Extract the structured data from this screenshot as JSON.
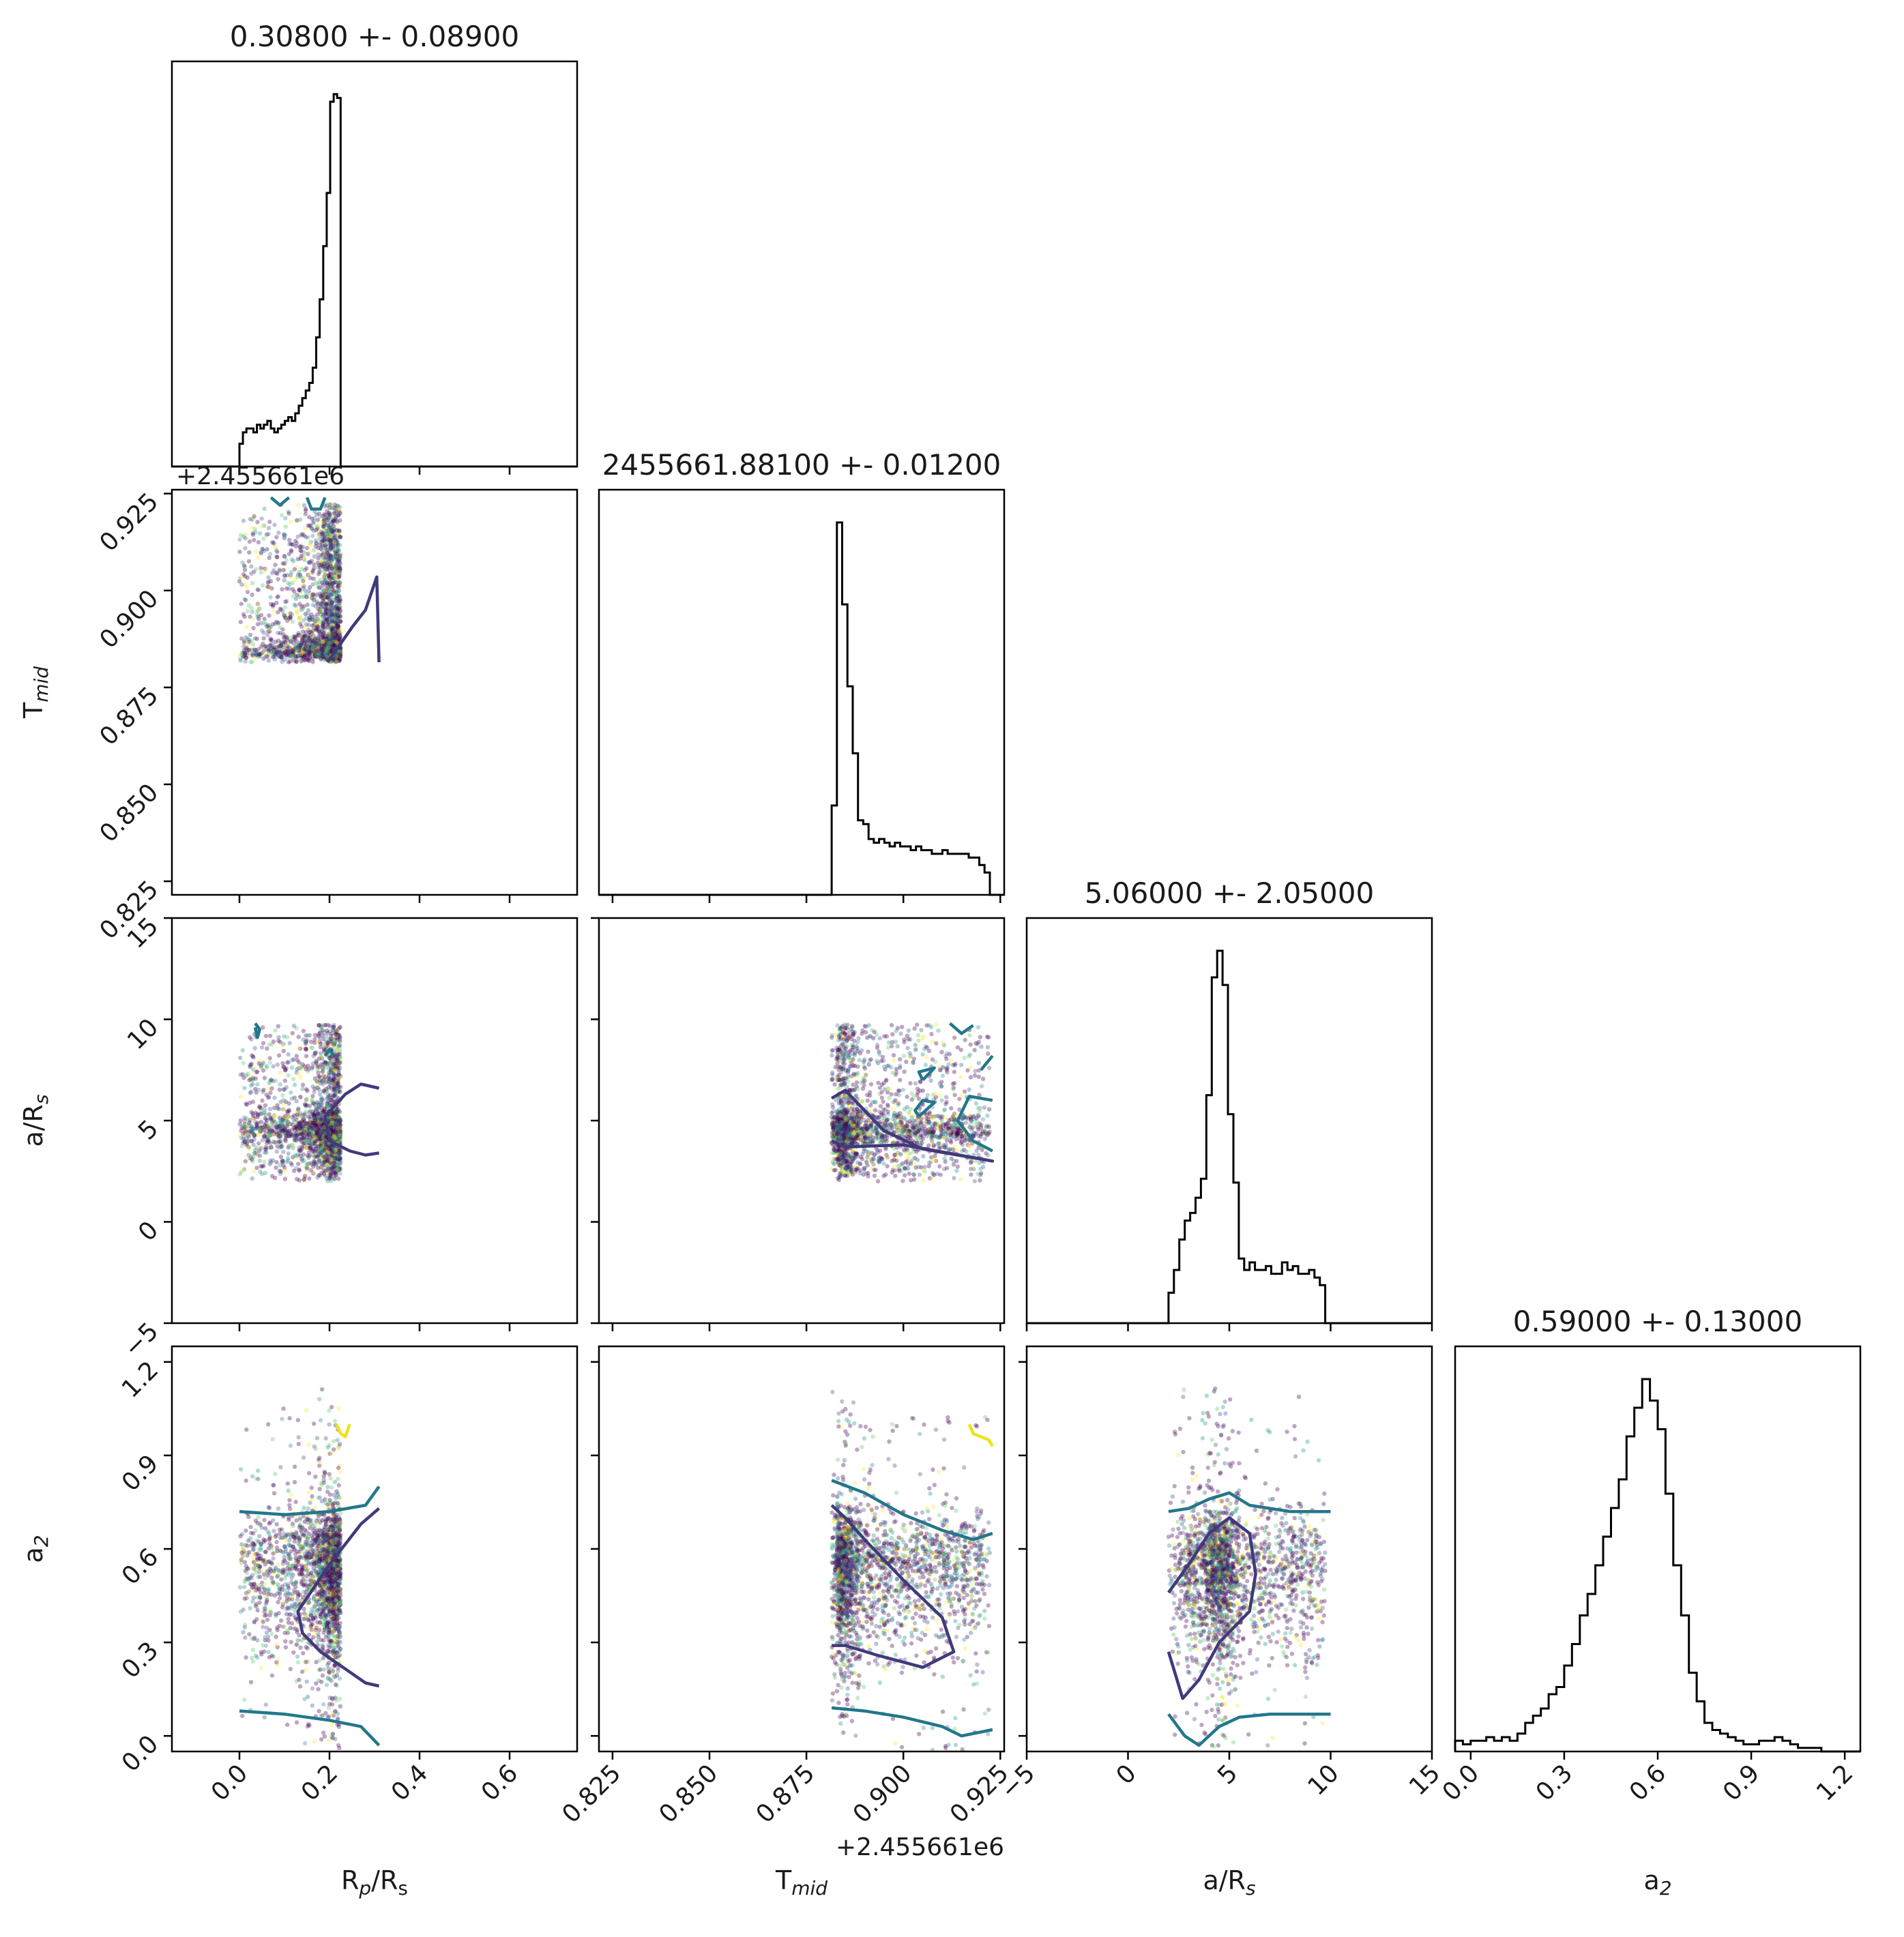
{
  "chart_data": {
    "type": "corner",
    "parameters": [
      {
        "key": "rp",
        "label": "R",
        "sub": "p",
        "label_tail": "/R",
        "tail_sub": "s",
        "title": "0.30800 +- 0.08900",
        "range": [
          -0.15,
          0.75
        ],
        "ticks": [
          0.0,
          0.2,
          0.4,
          0.6
        ],
        "tick_labels": [
          "0.0",
          "0.2",
          "0.4",
          "0.6"
        ],
        "offset": ""
      },
      {
        "key": "tmid",
        "label": "T",
        "sub": "mid",
        "label_tail": "",
        "tail_sub": "",
        "title": "2455661.88100 +- 0.01200",
        "range": [
          0.8215,
          0.926
        ],
        "ticks": [
          0.825,
          0.85,
          0.875,
          0.9,
          0.925
        ],
        "tick_labels": [
          "0.825",
          "0.850",
          "0.875",
          "0.900",
          "0.925"
        ],
        "offset": "+2.455661e6"
      },
      {
        "key": "ars",
        "label": "a/R",
        "sub": "s",
        "label_tail": "",
        "tail_sub": "",
        "title": "5.06000 +- 2.05000",
        "range": [
          -5.0,
          15.0
        ],
        "ticks": [
          -5,
          0,
          5,
          10,
          15
        ],
        "tick_labels": [
          "−5",
          "0",
          "5",
          "10",
          "15"
        ],
        "offset": ""
      },
      {
        "key": "a2",
        "label": "a",
        "sub": "2",
        "label_tail": "",
        "tail_sub": "",
        "title": "0.59000 +- 0.13000",
        "range": [
          -0.05,
          1.25
        ],
        "ticks": [
          0.0,
          0.3,
          0.6,
          0.9,
          1.2
        ],
        "tick_labels": [
          "0.0",
          "0.3",
          "0.6",
          "0.9",
          "1.2"
        ],
        "offset": ""
      }
    ],
    "histograms": {
      "rp": {
        "bin_start": 0.0,
        "bin_width": 0.00775,
        "counts": [
          6,
          9,
          10,
          10,
          9,
          11,
          10,
          11,
          12,
          10,
          9,
          10,
          11,
          12,
          13,
          12,
          14,
          16,
          18,
          20,
          22,
          26,
          34,
          44,
          58,
          72,
          96,
          98,
          97,
          0
        ]
      },
      "tmid": {
        "bin_start": 0.8815,
        "bin_width": 0.00136,
        "counts": [
          24,
          100,
          78,
          56,
          38,
          20,
          19,
          15,
          14,
          15,
          14,
          13,
          14,
          13,
          13,
          12,
          13,
          12,
          12,
          11,
          11,
          12,
          11,
          11,
          11,
          11,
          10,
          10,
          8,
          6
        ]
      },
      "ars": {
        "bin_start": 2.0,
        "bin_width": 0.2667,
        "counts": [
          8,
          14,
          22,
          27,
          29,
          33,
          38,
          60,
          91,
          98,
          89,
          55,
          37,
          17,
          14,
          16,
          14,
          14,
          15,
          13,
          13,
          16,
          14,
          15,
          13,
          13,
          14,
          12,
          10,
          0
        ]
      },
      "a2": {
        "bin_start": -0.05,
        "bin_width": 0.025,
        "counts": [
          3,
          2,
          3,
          3,
          4,
          3,
          4,
          3,
          5,
          8,
          10,
          12,
          16,
          18,
          24,
          30,
          38,
          44,
          52,
          60,
          68,
          76,
          88,
          96,
          104,
          98,
          90,
          72,
          52,
          38,
          22,
          14,
          8,
          6,
          5,
          4,
          3,
          2,
          2,
          3,
          3,
          4,
          3,
          2,
          1,
          1,
          1,
          0,
          0
        ]
      }
    },
    "contours": {
      "rp_tmid": [
        {
          "level": "inner",
          "points": [
            [
              0.195,
              0.8815
            ],
            [
              0.22,
              0.8855
            ],
            [
              0.25,
              0.8905
            ],
            [
              0.28,
              0.895
            ],
            [
              0.305,
              0.9035
            ],
            [
              0.31,
              0.8815
            ]
          ]
        },
        {
          "level": "outer",
          "points": [
            [
              0.07,
              0.924
            ],
            [
              0.09,
              0.922
            ],
            [
              0.11,
              0.924
            ]
          ]
        },
        {
          "level": "outer",
          "points": [
            [
              0.15,
              0.924
            ],
            [
              0.16,
              0.921
            ],
            [
              0.18,
              0.921
            ],
            [
              0.19,
              0.924
            ]
          ]
        }
      ],
      "rp_ars": [
        {
          "level": "inner",
          "points": [
            [
              0.31,
              6.6
            ],
            [
              0.27,
              6.8
            ],
            [
              0.235,
              6.3
            ],
            [
              0.19,
              5.2
            ],
            [
              0.2,
              4.0
            ],
            [
              0.245,
              3.5
            ],
            [
              0.28,
              3.3
            ],
            [
              0.31,
              3.4
            ]
          ]
        },
        {
          "level": "outer",
          "points": [
            [
              0.035,
              9.6
            ],
            [
              0.04,
              9.1
            ],
            [
              0.045,
              9.5
            ],
            [
              0.035,
              9.8
            ]
          ]
        },
        {
          "level": "outer",
          "points": [
            [
              0.19,
              8.2
            ],
            [
              0.2,
              8.5
            ],
            [
              0.21,
              8.2
            ]
          ]
        }
      ],
      "tmid_ars": [
        {
          "level": "inner",
          "points": [
            [
              0.8815,
              6.1
            ],
            [
              0.885,
              6.5
            ],
            [
              0.89,
              5.5
            ],
            [
              0.895,
              4.5
            ],
            [
              0.905,
              3.6
            ],
            [
              0.92,
              3.1
            ],
            [
              0.923,
              3.0
            ],
            [
              0.9,
              3.8
            ],
            [
              0.885,
              3.7
            ],
            [
              0.8815,
              4.0
            ]
          ]
        },
        {
          "level": "outer",
          "points": [
            [
              0.905,
              7.0
            ],
            [
              0.908,
              7.6
            ],
            [
              0.904,
              7.4
            ],
            [
              0.905,
              7.0
            ]
          ]
        },
        {
          "level": "outer",
          "points": [
            [
              0.904,
              5.2
            ],
            [
              0.908,
              5.9
            ],
            [
              0.905,
              6.0
            ],
            [
              0.903,
              5.5
            ],
            [
              0.904,
              5.2
            ]
          ]
        },
        {
          "level": "outer",
          "points": [
            [
              0.923,
              6.0
            ],
            [
              0.917,
              6.2
            ],
            [
              0.914,
              5.0
            ],
            [
              0.918,
              4.0
            ],
            [
              0.923,
              3.5
            ]
          ]
        },
        {
          "level": "outer",
          "points": [
            [
              0.92,
              7.5
            ],
            [
              0.923,
              8.2
            ]
          ]
        },
        {
          "level": "outer",
          "points": [
            [
              0.912,
              9.8
            ],
            [
              0.915,
              9.3
            ],
            [
              0.918,
              9.7
            ]
          ]
        }
      ],
      "rp_a2": [
        {
          "level": "inner",
          "points": [
            [
              0.31,
              0.73
            ],
            [
              0.27,
              0.68
            ],
            [
              0.2,
              0.55
            ],
            [
              0.13,
              0.4
            ],
            [
              0.14,
              0.33
            ],
            [
              0.18,
              0.27
            ],
            [
              0.24,
              0.21
            ],
            [
              0.28,
              0.17
            ],
            [
              0.31,
              0.16
            ]
          ]
        },
        {
          "level": "outer",
          "points": [
            [
              0.0,
              0.72
            ],
            [
              0.1,
              0.71
            ],
            [
              0.2,
              0.72
            ],
            [
              0.28,
              0.74
            ],
            [
              0.31,
              0.8
            ]
          ]
        },
        {
          "level": "outer",
          "points": [
            [
              0.0,
              0.08
            ],
            [
              0.1,
              0.07
            ],
            [
              0.2,
              0.05
            ],
            [
              0.27,
              0.03
            ],
            [
              0.31,
              -0.03
            ]
          ]
        },
        {
          "level": "outer_hi",
          "points": [
            [
              0.215,
              1.0
            ],
            [
              0.225,
              0.97
            ],
            [
              0.235,
              0.96
            ],
            [
              0.245,
              1.0
            ]
          ]
        }
      ],
      "tmid_a2": [
        {
          "level": "inner",
          "points": [
            [
              0.8815,
              0.74
            ],
            [
              0.885,
              0.7
            ],
            [
              0.89,
              0.63
            ],
            [
              0.9,
              0.5
            ],
            [
              0.91,
              0.38
            ],
            [
              0.913,
              0.27
            ],
            [
              0.905,
              0.22
            ],
            [
              0.893,
              0.26
            ],
            [
              0.885,
              0.29
            ],
            [
              0.8815,
              0.29
            ]
          ]
        },
        {
          "level": "outer",
          "points": [
            [
              0.8815,
              0.82
            ],
            [
              0.89,
              0.78
            ],
            [
              0.9,
              0.71
            ],
            [
              0.91,
              0.66
            ],
            [
              0.918,
              0.63
            ],
            [
              0.923,
              0.65
            ]
          ]
        },
        {
          "level": "outer",
          "points": [
            [
              0.8815,
              0.09
            ],
            [
              0.89,
              0.08
            ],
            [
              0.9,
              0.06
            ],
            [
              0.91,
              0.03
            ],
            [
              0.915,
              0.0
            ],
            [
              0.923,
              0.02
            ]
          ]
        },
        {
          "level": "outer_hi",
          "points": [
            [
              0.917,
              1.0
            ],
            [
              0.918,
              0.97
            ],
            [
              0.922,
              0.95
            ],
            [
              0.923,
              0.93
            ]
          ]
        }
      ],
      "ars_a2": [
        {
          "level": "inner",
          "points": [
            [
              2.0,
              0.46
            ],
            [
              3.0,
              0.55
            ],
            [
              4.0,
              0.65
            ],
            [
              5.0,
              0.7
            ],
            [
              6.0,
              0.65
            ],
            [
              6.3,
              0.52
            ],
            [
              6.0,
              0.4
            ],
            [
              4.5,
              0.3
            ],
            [
              3.5,
              0.18
            ],
            [
              2.7,
              0.12
            ],
            [
              2.0,
              0.27
            ]
          ]
        },
        {
          "level": "outer",
          "points": [
            [
              2.0,
              0.72
            ],
            [
              3.0,
              0.73
            ],
            [
              4.0,
              0.76
            ],
            [
              5.0,
              0.78
            ],
            [
              6.0,
              0.74
            ],
            [
              8.0,
              0.72
            ],
            [
              10.0,
              0.72
            ]
          ]
        },
        {
          "level": "outer",
          "points": [
            [
              2.0,
              0.07
            ],
            [
              2.8,
              0.0
            ],
            [
              3.5,
              -0.03
            ],
            [
              4.5,
              0.03
            ],
            [
              5.5,
              0.06
            ],
            [
              7.0,
              0.07
            ],
            [
              10.0,
              0.07
            ]
          ]
        }
      ]
    },
    "colors": {
      "inner_contour": "#3f3a7a",
      "outer_contour": "#23778a",
      "outer_hi_contour": "#f0e11a",
      "viridis": [
        "#440154",
        "#3b528b",
        "#21918c",
        "#5ec962",
        "#fde725"
      ]
    },
    "grid": false,
    "legend": "none"
  }
}
